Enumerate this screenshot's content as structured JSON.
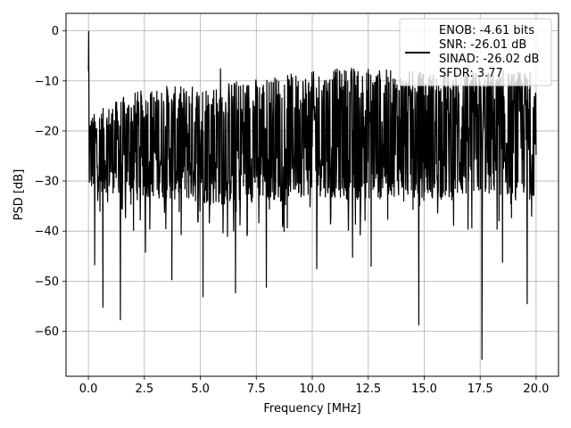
{
  "chart_data": {
    "type": "line",
    "title": "",
    "xlabel": "Frequency [MHz]",
    "ylabel": "PSD [dB]",
    "xlim": [
      -1.0,
      21.0
    ],
    "ylim": [
      -69.0,
      3.5
    ],
    "xticks": [
      0.0,
      2.5,
      5.0,
      7.5,
      10.0,
      12.5,
      15.0,
      17.5,
      20.0
    ],
    "xtick_labels": [
      "0.0",
      "2.5",
      "5.0",
      "7.5",
      "10.0",
      "12.5",
      "15.0",
      "17.5",
      "20.0"
    ],
    "yticks": [
      0,
      -10,
      -20,
      -30,
      -40,
      -50,
      -60
    ],
    "ytick_labels": [
      "0",
      "−10",
      "−20",
      "−30",
      "−40",
      "−50",
      "−60"
    ],
    "grid": true,
    "legend_position": "top-right",
    "series": [
      {
        "name": "ENOB: -4.61 bits\nSNR: -26.01 dB\nSINAD: -26.02 dB\nSFDR: 3.77",
        "color": "#000000",
        "style": "noisy spectrum",
        "x_range": [
          0.0,
          20.0
        ],
        "envelope_upper_db": [
          -17,
          -12,
          -11,
          -10,
          -9,
          -8,
          -7,
          -8,
          -8,
          -8,
          -8
        ],
        "envelope_lower_db": [
          -32,
          -33,
          -34,
          -35,
          -34,
          -33,
          -34,
          -33,
          -34,
          -33,
          -33
        ],
        "envelope_x": [
          0,
          2,
          4,
          6,
          8,
          10,
          12,
          14,
          16,
          18,
          20
        ],
        "features": [
          {
            "x": 0.0,
            "y": 0
          },
          {
            "x": 0.28,
            "y": -46.8
          },
          {
            "x": 0.65,
            "y": -55.3
          },
          {
            "x": 1.43,
            "y": -57.8
          },
          {
            "x": 2.55,
            "y": -44.3
          },
          {
            "x": 3.73,
            "y": -49.8
          },
          {
            "x": 5.12,
            "y": -53.2
          },
          {
            "x": 6.57,
            "y": -52.4
          },
          {
            "x": 7.95,
            "y": -51.3
          },
          {
            "x": 10.2,
            "y": -47.6
          },
          {
            "x": 11.8,
            "y": -45.3
          },
          {
            "x": 12.63,
            "y": -47.1
          },
          {
            "x": 14.76,
            "y": -58.8
          },
          {
            "x": 17.58,
            "y": -65.7
          },
          {
            "x": 18.5,
            "y": -46.3
          },
          {
            "x": 19.6,
            "y": -54.6
          },
          {
            "x": 13.02,
            "y": -9.0
          },
          {
            "x": 3.5,
            "y": -11.0
          },
          {
            "x": 5.9,
            "y": -7.5
          },
          {
            "x": 16.86,
            "y": -9.0
          }
        ]
      }
    ],
    "legend": {
      "entries": [
        "ENOB: -4.61 bits",
        "SNR: -26.01 dB",
        "SINAD: -26.02 dB",
        "SFDR: 3.77"
      ]
    }
  }
}
